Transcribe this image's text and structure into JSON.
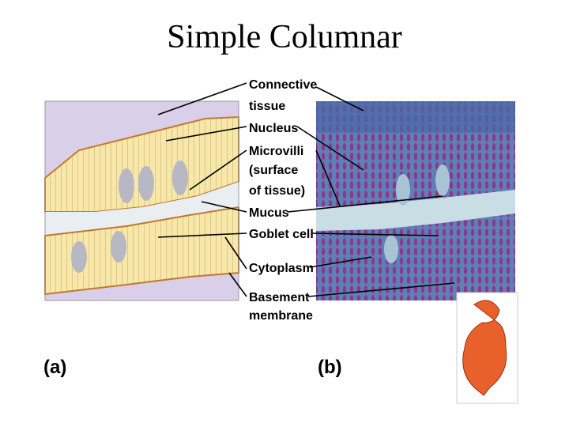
{
  "title": "Simple Columnar",
  "labels": [
    {
      "lines": [
        "Connective",
        "tissue"
      ]
    },
    {
      "lines": [
        "Nucleus"
      ]
    },
    {
      "lines": [
        "Microvilli",
        "(surface",
        "of tissue)"
      ]
    },
    {
      "lines": [
        "Mucus"
      ]
    },
    {
      "lines": [
        "Goblet cell"
      ]
    },
    {
      "lines": [
        "Cytoplasm"
      ]
    },
    {
      "lines": [
        "Basement",
        "membrane"
      ]
    }
  ],
  "panels": [
    "(a)",
    "(b)"
  ]
}
